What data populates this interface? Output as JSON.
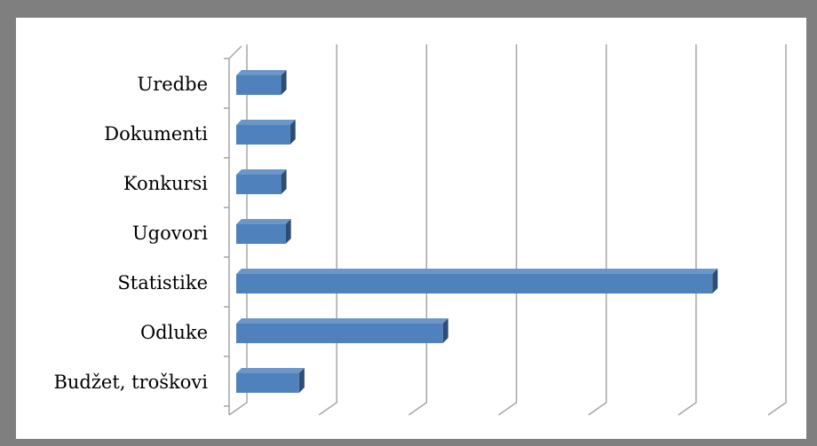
{
  "chart_data": {
    "type": "bar",
    "orientation": "horizontal",
    "style": "3d-clustered",
    "categories": [
      "Uredbe",
      "Dokumenti",
      "Konkursi",
      "Ugovori",
      "Statistike",
      "Odluke",
      "Budžet, troškovi"
    ],
    "values": [
      5,
      6,
      5,
      5.5,
      53,
      23,
      7
    ],
    "xlim": [
      0,
      60
    ],
    "title": "",
    "xlabel": "",
    "ylabel": "",
    "grid": true,
    "legend": "none",
    "x_tick_labels_visible": false,
    "colors": {
      "bar_front": "#4f81bd",
      "bar_top": "#6b96c8",
      "bar_side": "#2c4d75",
      "grid": "#a6a6a6",
      "frame": "#7f7f7f"
    }
  }
}
